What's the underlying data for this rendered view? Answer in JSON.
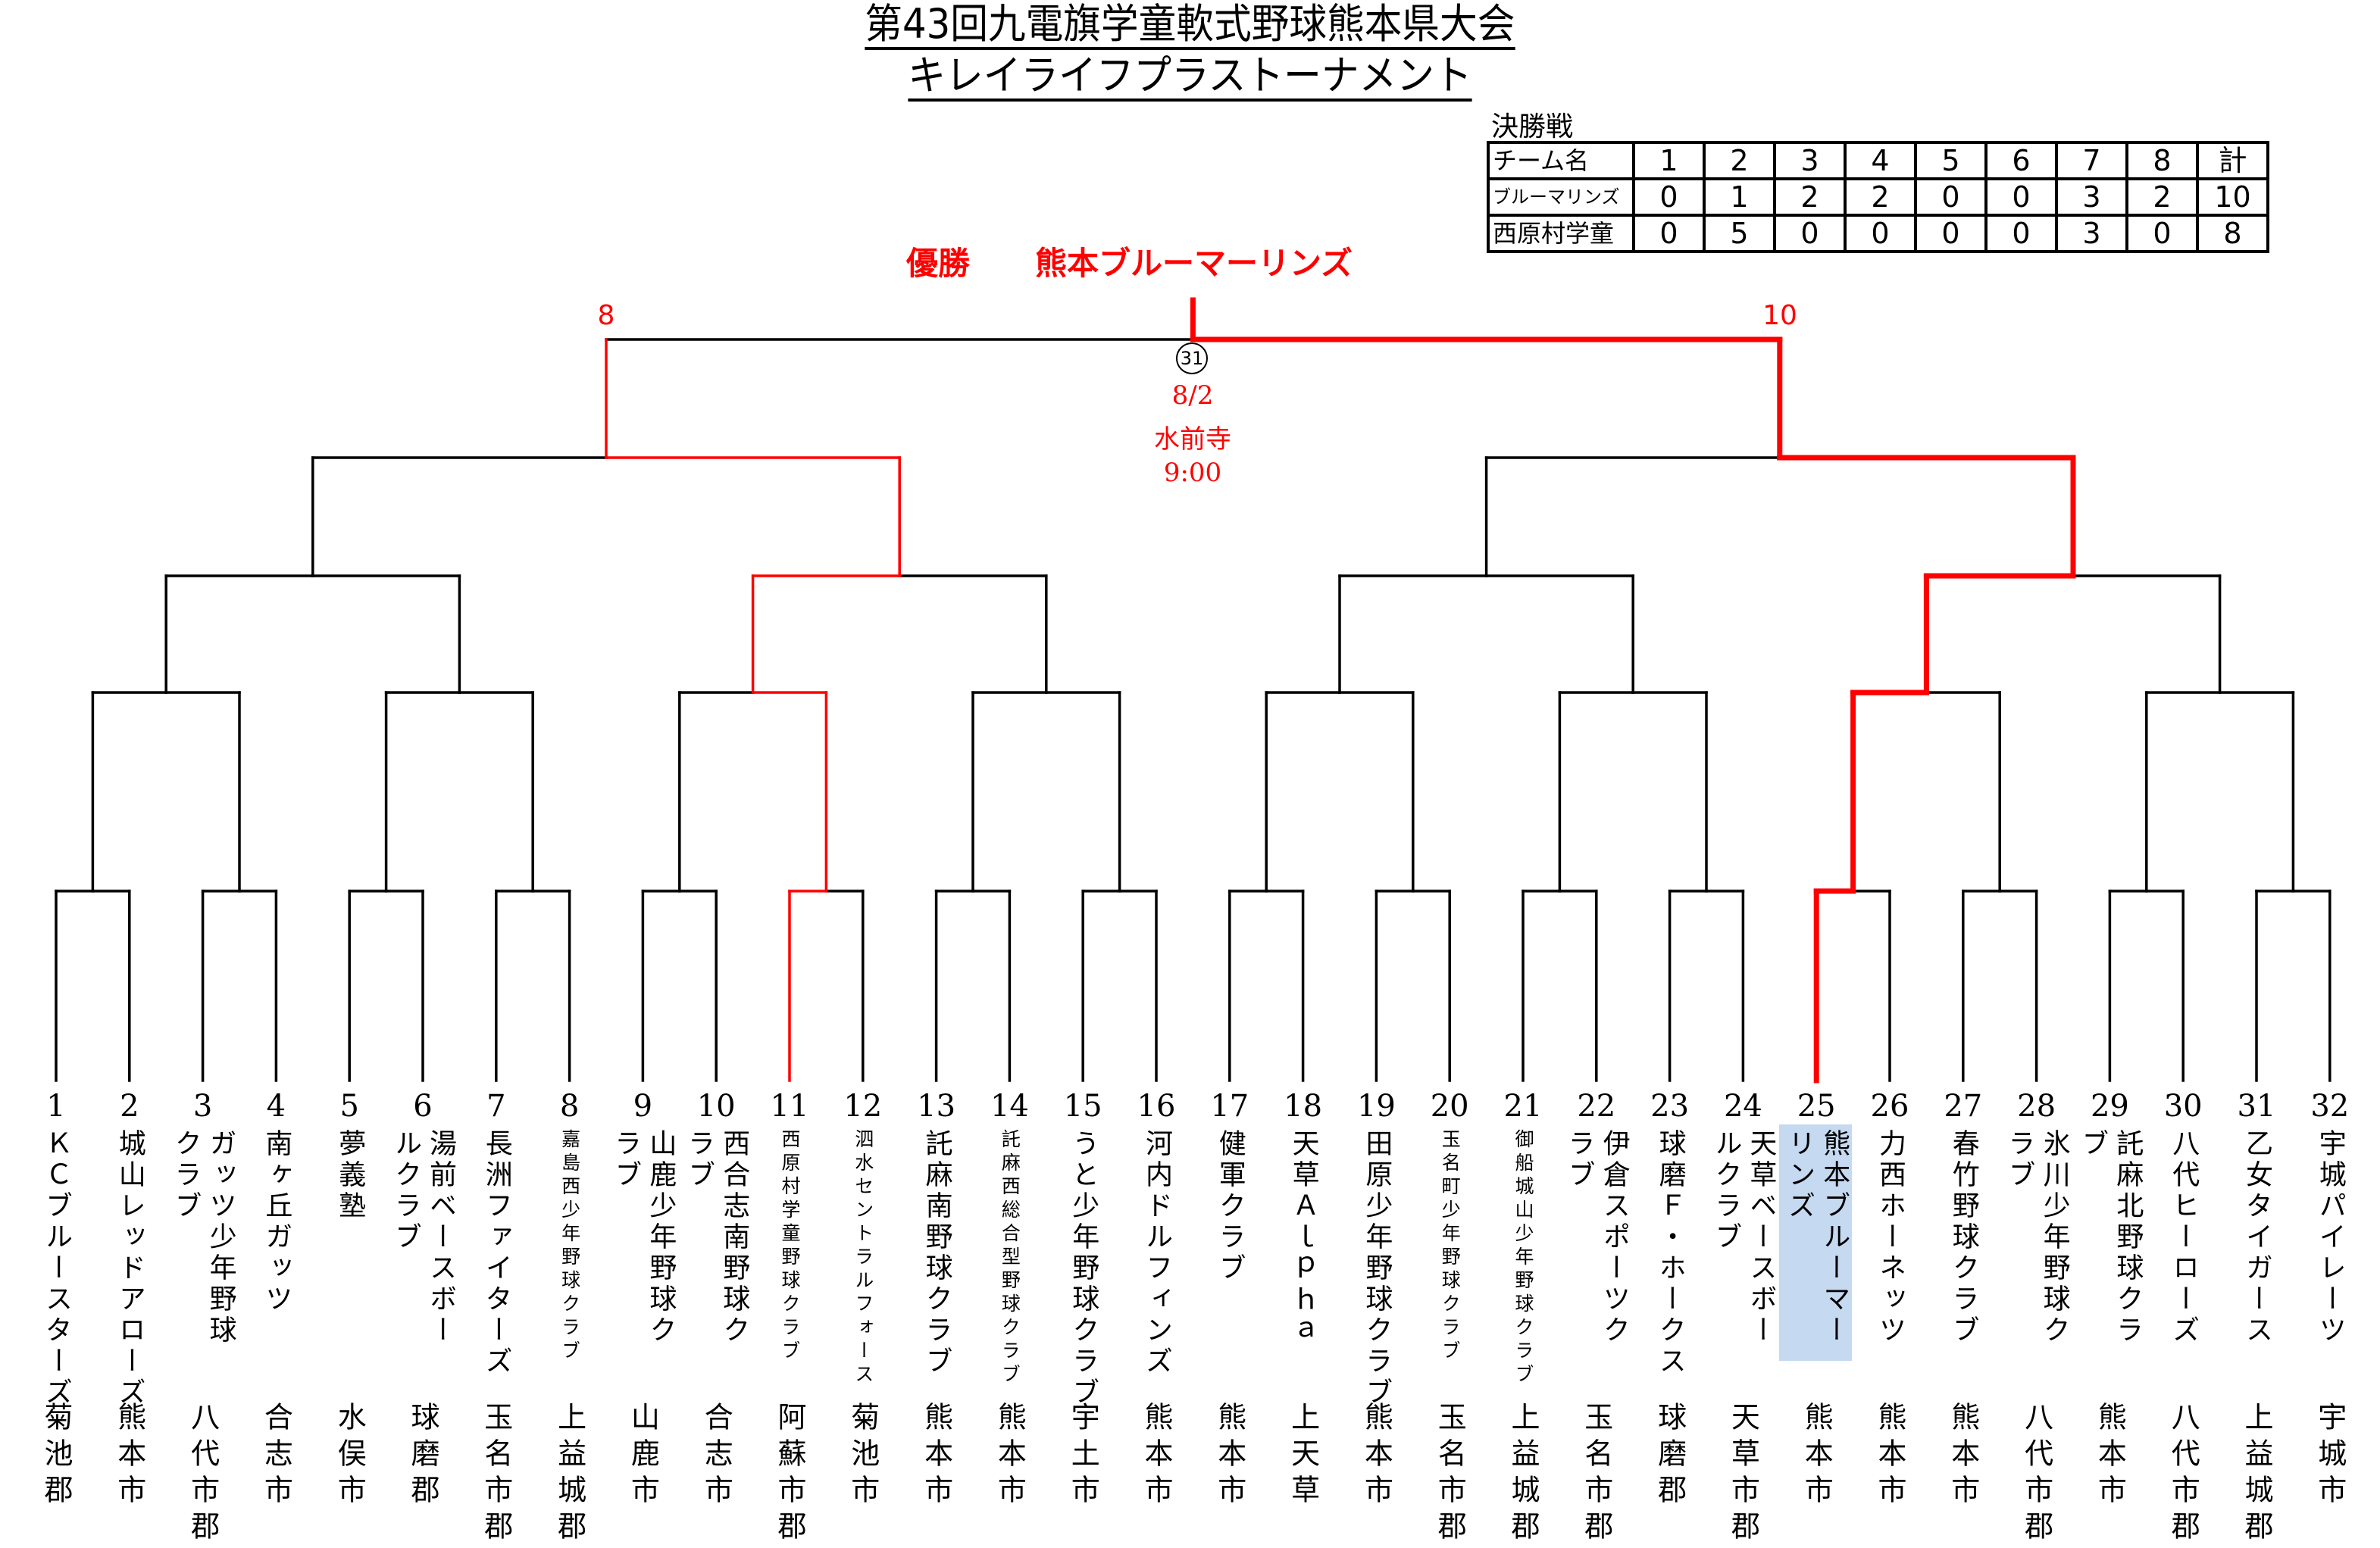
{
  "title": {
    "line1": "第43回九電旗学童軟式野球熊本県大会",
    "line2": "キレイライフプラストーナメント"
  },
  "champion": {
    "label": "優勝",
    "team": "熊本ブルーマーリンズ"
  },
  "final_match": {
    "match_number": "31",
    "date": "8/2",
    "venue": "水前寺",
    "time": "9:00",
    "left_score": "8",
    "right_score": "10"
  },
  "scoreboard": {
    "caption": "決勝戦",
    "header": [
      "チーム名",
      "1",
      "2",
      "3",
      "4",
      "5",
      "6",
      "7",
      "8",
      "計"
    ],
    "rows": [
      {
        "team": "ブルーマリンズ",
        "cells": [
          "0",
          "1",
          "2",
          "2",
          "0",
          "0",
          "3",
          "2",
          "10"
        ]
      },
      {
        "team": "西原村学童",
        "cells": [
          "0",
          "5",
          "0",
          "0",
          "0",
          "0",
          "3",
          "0",
          "8"
        ]
      }
    ]
  },
  "highlight": {
    "champion_team_no": 25,
    "runner_up_team_no": 11
  },
  "colors": {
    "accent": "#ff0000",
    "champion_box": "#c5d9f1",
    "line": "#000000"
  },
  "teams": [
    {
      "no": "1",
      "name_lines": [
        "ＫＣブルースターズ"
      ],
      "region": "菊池郡"
    },
    {
      "no": "2",
      "name_lines": [
        "城山レッドアローズ"
      ],
      "region": "熊本市"
    },
    {
      "no": "3",
      "name_lines": [
        "ガッツ少年野球",
        "クラブ"
      ],
      "region": "八代市郡"
    },
    {
      "no": "4",
      "name_lines": [
        "南ヶ丘ガッツ"
      ],
      "region": "合志市"
    },
    {
      "no": "5",
      "name_lines": [
        "夢義塾"
      ],
      "region": "水俣市"
    },
    {
      "no": "6",
      "name_lines": [
        "湯前ベースボー",
        "ルクラブ"
      ],
      "region": "球磨郡"
    },
    {
      "no": "7",
      "name_lines": [
        "長洲ファイターズ"
      ],
      "region": "玉名市郡"
    },
    {
      "no": "8",
      "name_lines": [
        "嘉島西少年野球クラブ"
      ],
      "region": "上益城郡"
    },
    {
      "no": "9",
      "name_lines": [
        "山鹿少年野球ク",
        "ラブ"
      ],
      "region": "山鹿市"
    },
    {
      "no": "10",
      "name_lines": [
        "西合志南野球ク",
        "ラブ"
      ],
      "region": "合志市"
    },
    {
      "no": "11",
      "name_lines": [
        "西原村学童野球クラブ"
      ],
      "region": "阿蘇市郡"
    },
    {
      "no": "12",
      "name_lines": [
        "泗水セントラルフォース"
      ],
      "region": "菊池市"
    },
    {
      "no": "13",
      "name_lines": [
        "託麻南野球クラブ"
      ],
      "region": "熊本市"
    },
    {
      "no": "14",
      "name_lines": [
        "託麻西総合型野球クラブ"
      ],
      "region": "熊本市"
    },
    {
      "no": "15",
      "name_lines": [
        "うと少年野球クラブ"
      ],
      "region": "宇土市"
    },
    {
      "no": "16",
      "name_lines": [
        "河内ドルフィンズ"
      ],
      "region": "熊本市"
    },
    {
      "no": "17",
      "name_lines": [
        "健軍クラブ"
      ],
      "region": "熊本市"
    },
    {
      "no": "18",
      "name_lines": [
        "天草Ａｌｐｈａ"
      ],
      "region": "上天草"
    },
    {
      "no": "19",
      "name_lines": [
        "田原少年野球クラブ"
      ],
      "region": "熊本市"
    },
    {
      "no": "20",
      "name_lines": [
        "玉名町少年野球クラブ"
      ],
      "region": "玉名市郡"
    },
    {
      "no": "21",
      "name_lines": [
        "御船城山少年野球クラブ"
      ],
      "region": "上益城郡"
    },
    {
      "no": "22",
      "name_lines": [
        "伊倉スポーツク",
        "ラブ"
      ],
      "region": "玉名市郡"
    },
    {
      "no": "23",
      "name_lines": [
        "球磨Ｆ・ホークス"
      ],
      "region": "球磨郡"
    },
    {
      "no": "24",
      "name_lines": [
        "天草ベースボー",
        "ルクラブ"
      ],
      "region": "天草市郡"
    },
    {
      "no": "25",
      "name_lines": [
        "熊本ブルーマー",
        "リンズ"
      ],
      "region": "熊本市"
    },
    {
      "no": "26",
      "name_lines": [
        "力西ホーネッツ"
      ],
      "region": "熊本市"
    },
    {
      "no": "27",
      "name_lines": [
        "春竹野球クラブ"
      ],
      "region": "熊本市"
    },
    {
      "no": "28",
      "name_lines": [
        "氷川少年野球ク",
        "ラブ"
      ],
      "region": "八代市郡"
    },
    {
      "no": "29",
      "name_lines": [
        "託麻北野球クラ",
        "ブ"
      ],
      "region": "熊本市"
    },
    {
      "no": "30",
      "name_lines": [
        "八代ヒーローズ"
      ],
      "region": "八代市郡"
    },
    {
      "no": "31",
      "name_lines": [
        "乙女タイガース"
      ],
      "region": "上益城郡"
    },
    {
      "no": "32",
      "name_lines": [
        "宇城パイレーツ"
      ],
      "region": "宇城市"
    }
  ]
}
